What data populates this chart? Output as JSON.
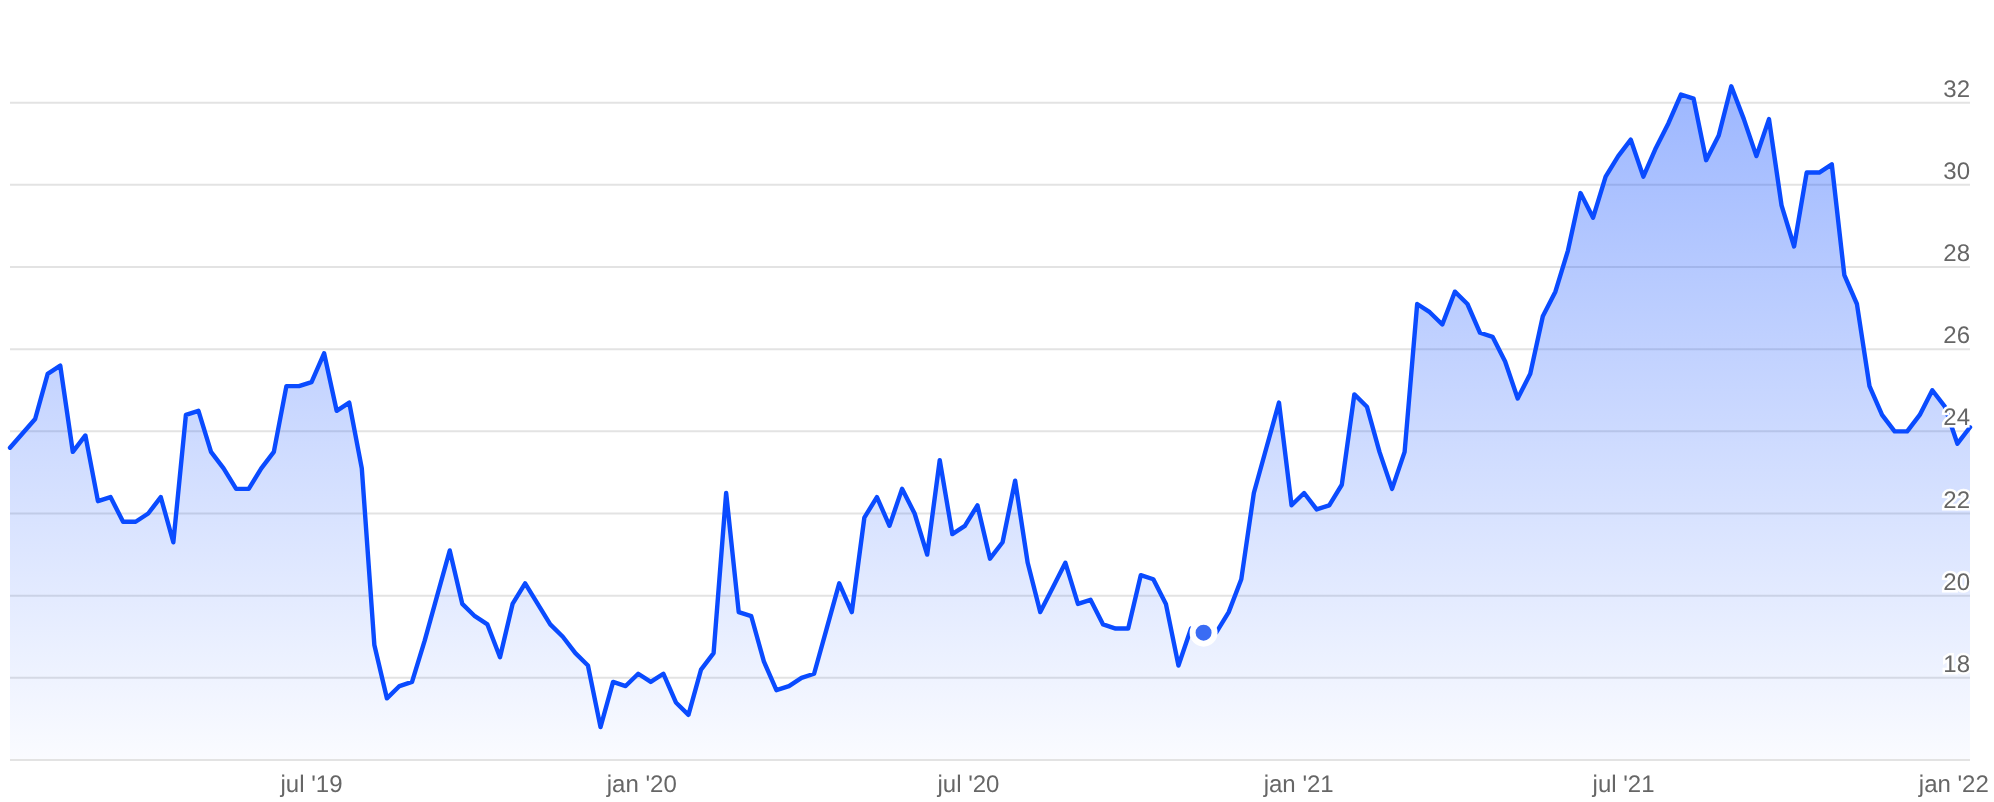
{
  "chart_data": {
    "type": "area",
    "x": [
      "2019-01-14",
      "2019-01-28",
      "2019-02-04",
      "2019-02-11",
      "2019-02-18",
      "2019-02-25",
      "2019-03-04",
      "2019-03-11",
      "2019-03-18",
      "2019-03-25",
      "2019-04-01",
      "2019-04-08",
      "2019-04-15",
      "2019-04-22",
      "2019-04-29",
      "2019-05-06",
      "2019-05-13",
      "2019-05-20",
      "2019-05-27",
      "2019-06-03",
      "2019-06-10",
      "2019-06-17",
      "2019-06-24",
      "2019-07-01",
      "2019-07-08",
      "2019-07-15",
      "2019-07-22",
      "2019-07-29",
      "2019-08-05",
      "2019-08-12",
      "2019-08-19",
      "2019-08-26",
      "2019-09-02",
      "2019-09-09",
      "2019-09-16",
      "2019-09-23",
      "2019-09-30",
      "2019-10-07",
      "2019-10-14",
      "2019-10-21",
      "2019-10-28",
      "2019-11-04",
      "2019-11-11",
      "2019-11-18",
      "2019-11-25",
      "2019-12-02",
      "2019-12-09",
      "2019-12-16",
      "2019-12-23",
      "2019-12-30",
      "2020-01-06",
      "2020-01-13",
      "2020-01-20",
      "2020-01-27",
      "2020-02-03",
      "2020-02-10",
      "2020-02-17",
      "2020-02-24",
      "2020-03-02",
      "2020-03-09",
      "2020-03-16",
      "2020-03-23",
      "2020-03-30",
      "2020-04-06",
      "2020-04-13",
      "2020-04-20",
      "2020-04-27",
      "2020-05-04",
      "2020-05-11",
      "2020-05-18",
      "2020-05-25",
      "2020-06-01",
      "2020-06-08",
      "2020-06-15",
      "2020-06-22",
      "2020-06-29",
      "2020-07-06",
      "2020-07-13",
      "2020-07-20",
      "2020-07-27",
      "2020-08-03",
      "2020-08-10",
      "2020-08-17",
      "2020-08-24",
      "2020-08-31",
      "2020-09-07",
      "2020-09-14",
      "2020-09-21",
      "2020-09-28",
      "2020-10-05",
      "2020-10-12",
      "2020-10-19",
      "2020-10-26",
      "2020-11-02",
      "2020-11-09",
      "2020-11-16",
      "2020-11-23",
      "2020-11-30",
      "2020-12-07",
      "2020-12-14",
      "2020-12-21",
      "2020-12-28",
      "2021-01-04",
      "2021-01-11",
      "2021-01-18",
      "2021-01-25",
      "2021-02-01",
      "2021-02-08",
      "2021-02-15",
      "2021-02-22",
      "2021-03-01",
      "2021-03-08",
      "2021-03-15",
      "2021-03-22",
      "2021-03-29",
      "2021-04-05",
      "2021-04-12",
      "2021-04-19",
      "2021-04-26",
      "2021-05-03",
      "2021-05-10",
      "2021-05-17",
      "2021-05-24",
      "2021-05-31",
      "2021-06-07",
      "2021-06-14",
      "2021-06-21",
      "2021-06-28",
      "2021-07-05",
      "2021-07-12",
      "2021-07-19",
      "2021-07-26",
      "2021-08-02",
      "2021-08-09",
      "2021-08-16",
      "2021-08-23",
      "2021-08-30",
      "2021-09-06",
      "2021-09-13",
      "2021-09-20",
      "2021-09-27",
      "2021-10-04",
      "2021-10-11",
      "2021-10-18",
      "2021-10-25",
      "2021-11-01",
      "2021-11-08",
      "2021-11-15",
      "2021-11-22",
      "2021-11-29",
      "2021-12-06",
      "2021-12-13",
      "2021-12-20",
      "2021-12-27",
      "2022-01-03",
      "2022-01-10"
    ],
    "series": [
      {
        "color": "#0a4bff",
        "values": [
          23.6,
          24.3,
          25.4,
          25.6,
          23.5,
          23.9,
          22.3,
          22.4,
          21.8,
          21.8,
          22.0,
          22.4,
          21.3,
          24.4,
          24.5,
          23.5,
          23.1,
          22.6,
          22.6,
          23.1,
          23.5,
          25.1,
          25.1,
          25.2,
          25.9,
          24.5,
          24.7,
          23.1,
          18.8,
          17.5,
          17.8,
          17.9,
          18.9,
          20.0,
          21.1,
          19.8,
          19.5,
          19.3,
          18.5,
          19.8,
          20.3,
          19.8,
          19.3,
          19.0,
          18.6,
          18.3,
          16.8,
          17.9,
          17.8,
          18.1,
          17.9,
          18.1,
          17.4,
          17.1,
          18.2,
          18.6,
          22.5,
          19.6,
          19.5,
          18.4,
          17.7,
          17.8,
          18.0,
          18.1,
          19.2,
          20.3,
          19.6,
          21.9,
          22.4,
          21.7,
          22.6,
          22.0,
          21.0,
          23.3,
          21.5,
          21.7,
          22.2,
          20.9,
          21.3,
          22.8,
          20.8,
          19.6,
          20.2,
          20.8,
          19.8,
          19.9,
          19.3,
          19.2,
          19.2,
          20.5,
          20.4,
          19.8,
          18.3,
          19.2,
          19.1,
          19.1,
          19.6,
          20.4,
          22.5,
          23.6,
          24.7,
          22.2,
          22.5,
          22.1,
          22.2,
          22.7,
          24.9,
          24.6,
          23.5,
          22.6,
          23.5,
          27.1,
          26.9,
          26.6,
          27.4,
          27.1,
          26.4,
          26.3,
          25.7,
          24.8,
          25.4,
          26.8,
          27.4,
          28.4,
          29.8,
          29.2,
          30.2,
          30.7,
          31.1,
          30.2,
          30.9,
          31.5,
          32.2,
          32.1,
          30.6,
          31.2,
          32.4,
          31.6,
          30.7,
          31.6,
          29.5,
          28.5,
          30.3,
          30.3,
          30.5,
          27.8,
          27.1,
          25.1,
          24.4,
          24.0,
          24.0,
          24.4,
          25.0,
          24.6,
          23.7,
          24.1
        ]
      },
      {
        "type": "scatter",
        "color": "#3a6cf4",
        "marker": "circle",
        "x": [
          "2020-11-09"
        ],
        "values": [
          19.1
        ]
      }
    ],
    "xlim": [
      "2019-01-14",
      "2022-01-10"
    ],
    "xticks": [
      {
        "value": "2019-07-01",
        "label": "jul '19"
      },
      {
        "value": "2020-01-01",
        "label": "jan '20"
      },
      {
        "value": "2020-07-01",
        "label": "jul '20"
      },
      {
        "value": "2021-01-01",
        "label": "jan '21"
      },
      {
        "value": "2021-07-01",
        "label": "jul '21"
      },
      {
        "value": "2022-01-01",
        "label": "jan '22"
      }
    ],
    "ylim": [
      16,
      34.5
    ],
    "yticks": [
      18,
      20,
      22,
      24,
      26,
      28,
      30,
      32
    ],
    "grid": "y"
  }
}
